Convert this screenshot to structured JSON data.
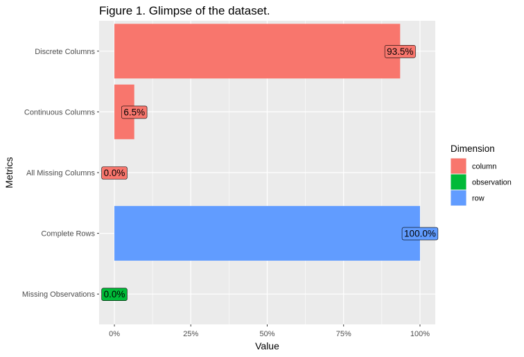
{
  "chart_data": {
    "type": "bar",
    "orientation": "horizontal",
    "title": "Figure 1. Glimpse of the dataset.",
    "xlabel": "Value",
    "ylabel": "Metrics",
    "xlim": [
      -0.05,
      1.05
    ],
    "x_ticks": [
      0,
      0.25,
      0.5,
      0.75,
      1.0
    ],
    "x_tick_labels": [
      "0%",
      "25%",
      "50%",
      "75%",
      "100%"
    ],
    "grid": true,
    "legend": {
      "title": "Dimension",
      "placement": "right",
      "entries": [
        {
          "name": "column",
          "color": "#F8766D"
        },
        {
          "name": "observation",
          "color": "#00BA38"
        },
        {
          "name": "row",
          "color": "#619CFF"
        }
      ]
    },
    "categories": [
      "Discrete Columns",
      "Continuous Columns",
      "All Missing Columns",
      "Complete Rows",
      "Missing Observations"
    ],
    "values": [
      0.935,
      0.065,
      0.0,
      1.0,
      0.0
    ],
    "data_labels": [
      "93.5%",
      "6.5%",
      "0.0%",
      "100.0%",
      "0.0%"
    ],
    "dimension": [
      "column",
      "column",
      "column",
      "row",
      "observation"
    ]
  }
}
